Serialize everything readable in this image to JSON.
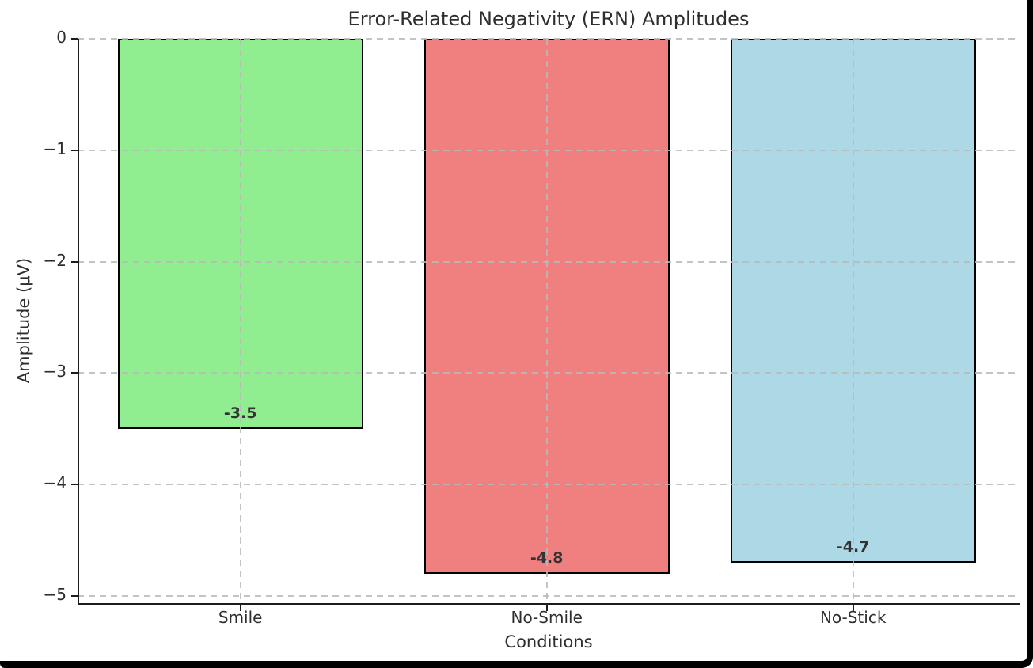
{
  "chart_data": {
    "type": "bar",
    "title": "Error-Related Negativity (ERN) Amplitudes",
    "xlabel": "Conditions",
    "ylabel": "Amplitude (μV)",
    "categories": [
      "Smile",
      "No-Smile",
      "No-Stick"
    ],
    "values": [
      -3.5,
      -4.8,
      -4.7
    ],
    "bar_labels": [
      "-3.5",
      "-4.8",
      "-4.7"
    ],
    "bar_colors": [
      "#90EE90",
      "#F08080",
      "#ADD8E6"
    ],
    "bar_edge_color": "#000000",
    "yticks": [
      0,
      -1,
      -2,
      -3,
      -4,
      -5
    ],
    "ytick_labels": [
      "0",
      "−1",
      "−2",
      "−3",
      "−4",
      "−5"
    ],
    "ylim": [
      -5.06,
      0
    ],
    "grid": true,
    "grid_style": "dashed",
    "legend": "none",
    "orientation": "vertical"
  }
}
